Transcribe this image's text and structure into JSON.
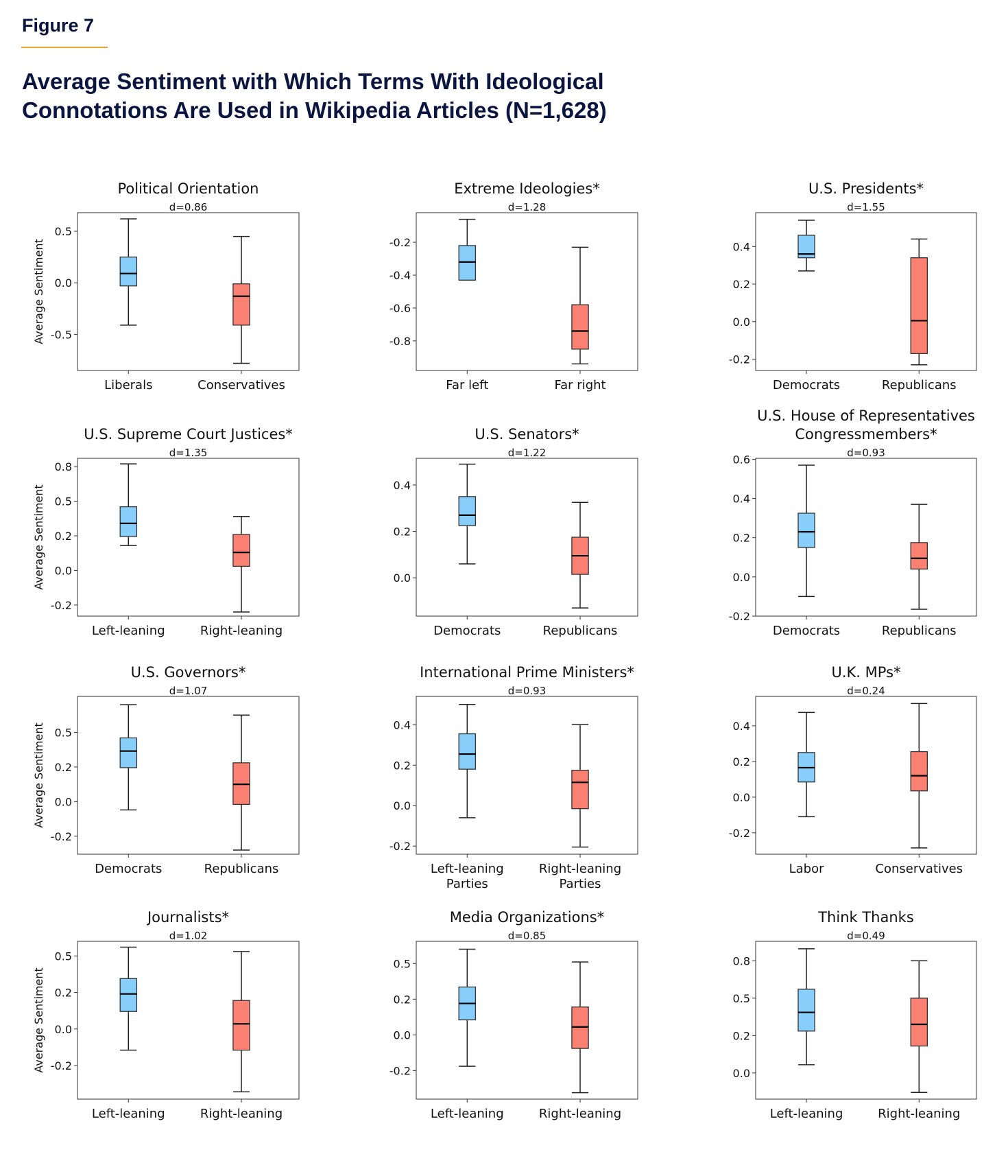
{
  "figure": {
    "label": "Figure 7",
    "title_lines": [
      "Average Sentiment with Which Terms With Ideological",
      "Connotations Are Used in Wikipedia Articles (N=1,628)"
    ]
  },
  "colors": {
    "left_group": "#87CEFA",
    "right_group": "#FA8072",
    "accent_rule": "#EFA33A",
    "title": "#0B1640"
  },
  "chart_data": [
    {
      "type": "box",
      "title": "Political Orientation",
      "subtitle": "d=0.86",
      "ylabel": "Average Sentiment",
      "ylim": [
        -0.85,
        0.68
      ],
      "yticks": [
        0.5,
        0.0,
        -0.5
      ],
      "ytick_labels": [
        "0.5",
        "0.0",
        "-0.5"
      ],
      "categories": [
        "Liberals",
        "Conservatives"
      ],
      "boxes": [
        {
          "name": "Liberals",
          "whisker_high": 0.62,
          "q3": 0.25,
          "median": 0.09,
          "q1": -0.03,
          "whisker_low": -0.41
        },
        {
          "name": "Conservatives",
          "whisker_high": 0.45,
          "q3": -0.01,
          "median": -0.13,
          "q1": -0.41,
          "whisker_low": -0.78
        }
      ]
    },
    {
      "type": "box",
      "title": "Extreme Ideologies*",
      "subtitle": "d=1.28",
      "ylabel": "",
      "ylim": [
        -0.98,
        -0.02
      ],
      "yticks": [
        -0.2,
        -0.4,
        -0.6,
        -0.8
      ],
      "ytick_labels": [
        "-0.2",
        "-0.4",
        "-0.6",
        "-0.8"
      ],
      "categories": [
        "Far left",
        "Far right"
      ],
      "boxes": [
        {
          "name": "Far left",
          "whisker_high": -0.06,
          "q3": -0.22,
          "median": -0.32,
          "q1": -0.43,
          "whisker_low": -0.43
        },
        {
          "name": "Far right",
          "whisker_high": -0.23,
          "q3": -0.58,
          "median": -0.74,
          "q1": -0.85,
          "whisker_low": -0.94
        }
      ]
    },
    {
      "type": "box",
      "title": "U.S. Presidents*",
      "subtitle": "d=1.55",
      "ylabel": "",
      "ylim": [
        -0.26,
        0.58
      ],
      "yticks": [
        0.4,
        0.2,
        0.0,
        -0.2
      ],
      "ytick_labels": [
        "0.4",
        "0.2",
        "0.0",
        "-0.2"
      ],
      "categories": [
        "Democrats",
        "Republicans"
      ],
      "boxes": [
        {
          "name": "Democrats",
          "whisker_high": 0.54,
          "q3": 0.46,
          "median": 0.36,
          "q1": 0.34,
          "whisker_low": 0.27
        },
        {
          "name": "Republicans",
          "whisker_high": 0.44,
          "q3": 0.34,
          "median": 0.005,
          "q1": -0.17,
          "whisker_low": -0.23
        }
      ]
    },
    {
      "type": "box",
      "title": "U.S. Supreme Court Justices*",
      "subtitle": "d=1.35",
      "ylabel": "Average Sentiment",
      "ylim": [
        -0.33,
        0.81
      ],
      "yticks": [
        0.75,
        0.5,
        0.25,
        0.0,
        -0.25
      ],
      "ytick_labels": [
        "0.8",
        "0.5",
        "0.2",
        "0.0",
        "-0.2"
      ],
      "categories": [
        "Left-leaning",
        "Right-leaning"
      ],
      "boxes": [
        {
          "name": "Left-leaning",
          "whisker_high": 0.77,
          "q3": 0.46,
          "median": 0.34,
          "q1": 0.245,
          "whisker_low": 0.18
        },
        {
          "name": "Right-leaning",
          "whisker_high": 0.39,
          "q3": 0.26,
          "median": 0.13,
          "q1": 0.03,
          "whisker_low": -0.3
        }
      ]
    },
    {
      "type": "box",
      "title": "U.S. Senators*",
      "subtitle": "d=1.22",
      "ylabel": "",
      "ylim": [
        -0.165,
        0.515
      ],
      "yticks": [
        0.4,
        0.2,
        0.0
      ],
      "ytick_labels": [
        "0.4",
        "0.2",
        "0.0"
      ],
      "categories": [
        "Democrats",
        "Republicans"
      ],
      "boxes": [
        {
          "name": "Democrats",
          "whisker_high": 0.49,
          "q3": 0.35,
          "median": 0.27,
          "q1": 0.225,
          "whisker_low": 0.06
        },
        {
          "name": "Republicans",
          "whisker_high": 0.325,
          "q3": 0.175,
          "median": 0.095,
          "q1": 0.015,
          "whisker_low": -0.13
        }
      ]
    },
    {
      "type": "box",
      "title": "U.S. House of Representatives Congressmembers*",
      "title_lines": [
        "U.S. House of Representatives",
        "Congressmembers*"
      ],
      "subtitle": "d=0.93",
      "ylabel": "",
      "ylim": [
        -0.2,
        0.605
      ],
      "yticks": [
        0.6,
        0.4,
        0.2,
        0.0,
        -0.2
      ],
      "ytick_labels": [
        "0.6",
        "0.4",
        "0.2",
        "0.0",
        "-0.2"
      ],
      "categories": [
        "Democrats",
        "Republicans"
      ],
      "boxes": [
        {
          "name": "Democrats",
          "whisker_high": 0.57,
          "q3": 0.325,
          "median": 0.23,
          "q1": 0.15,
          "whisker_low": -0.1
        },
        {
          "name": "Republicans",
          "whisker_high": 0.37,
          "q3": 0.175,
          "median": 0.095,
          "q1": 0.04,
          "whisker_low": -0.165
        }
      ]
    },
    {
      "type": "box",
      "title": "U.S. Governors*",
      "subtitle": "d=1.07",
      "ylabel": "Average Sentiment",
      "ylim": [
        -0.38,
        0.76
      ],
      "yticks": [
        0.5,
        0.25,
        0.0,
        -0.25
      ],
      "ytick_labels": [
        "0.5",
        "0.2",
        "0.0",
        "-0.2"
      ],
      "categories": [
        "Democrats",
        "Republicans"
      ],
      "boxes": [
        {
          "name": "Democrats",
          "whisker_high": 0.7,
          "q3": 0.46,
          "median": 0.365,
          "q1": 0.245,
          "whisker_low": -0.06
        },
        {
          "name": "Republicans",
          "whisker_high": 0.625,
          "q3": 0.28,
          "median": 0.125,
          "q1": -0.02,
          "whisker_low": -0.35
        }
      ]
    },
    {
      "type": "box",
      "title": "International Prime Ministers*",
      "subtitle": "d=0.93",
      "ylabel": "",
      "ylim": [
        -0.24,
        0.54
      ],
      "yticks": [
        0.4,
        0.2,
        0.0,
        -0.2
      ],
      "ytick_labels": [
        "0.4",
        "0.2",
        "0.0",
        "-0.2"
      ],
      "categories": [
        "Left-leaning Parties",
        "Right-leaning Parties"
      ],
      "category_lines": [
        [
          "Left-leaning",
          "Parties"
        ],
        [
          "Right-leaning",
          "Parties"
        ]
      ],
      "boxes": [
        {
          "name": "Left-leaning Parties",
          "whisker_high": 0.5,
          "q3": 0.355,
          "median": 0.255,
          "q1": 0.18,
          "whisker_low": -0.06
        },
        {
          "name": "Right-leaning Parties",
          "whisker_high": 0.4,
          "q3": 0.175,
          "median": 0.115,
          "q1": -0.015,
          "whisker_low": -0.205
        }
      ]
    },
    {
      "type": "box",
      "title": "U.K. MPs*",
      "subtitle": "d=0.24",
      "ylabel": "",
      "ylim": [
        -0.32,
        0.565
      ],
      "yticks": [
        0.4,
        0.2,
        0.0,
        -0.2
      ],
      "ytick_labels": [
        "0.4",
        "0.2",
        "0.0",
        "-0.2"
      ],
      "categories": [
        "Labor",
        "Conservatives"
      ],
      "boxes": [
        {
          "name": "Labor",
          "whisker_high": 0.475,
          "q3": 0.25,
          "median": 0.165,
          "q1": 0.085,
          "whisker_low": -0.11
        },
        {
          "name": "Conservatives",
          "whisker_high": 0.525,
          "q3": 0.255,
          "median": 0.12,
          "q1": 0.035,
          "whisker_low": -0.285
        }
      ]
    },
    {
      "type": "box",
      "title": "Journalists*",
      "subtitle": "d=1.02",
      "ylabel": "Average Sentiment",
      "ylim": [
        -0.48,
        0.6
      ],
      "yticks": [
        0.5,
        0.25,
        0.0,
        -0.25
      ],
      "ytick_labels": [
        "0.5",
        "0.2",
        "0.0",
        "-0.2"
      ],
      "categories": [
        "Left-leaning",
        "Right-leaning"
      ],
      "boxes": [
        {
          "name": "Left-leaning",
          "whisker_high": 0.56,
          "q3": 0.345,
          "median": 0.24,
          "q1": 0.12,
          "whisker_low": -0.145
        },
        {
          "name": "Right-leaning",
          "whisker_high": 0.53,
          "q3": 0.195,
          "median": 0.035,
          "q1": -0.145,
          "whisker_low": -0.43
        }
      ]
    },
    {
      "type": "box",
      "title": "Media Organizations*",
      "subtitle": "d=0.85",
      "ylabel": "",
      "ylim": [
        -0.45,
        0.655
      ],
      "yticks": [
        0.5,
        0.25,
        0.0,
        -0.25
      ],
      "ytick_labels": [
        "0.5",
        "0.2",
        "0.0",
        "-0.2"
      ],
      "categories": [
        "Left-leaning",
        "Right-leaning"
      ],
      "boxes": [
        {
          "name": "Left-leaning",
          "whisker_high": 0.6,
          "q3": 0.335,
          "median": 0.22,
          "q1": 0.105,
          "whisker_low": -0.22
        },
        {
          "name": "Right-leaning",
          "whisker_high": 0.51,
          "q3": 0.195,
          "median": 0.055,
          "q1": -0.095,
          "whisker_low": -0.405
        }
      ]
    },
    {
      "type": "box",
      "title": "Think Thanks",
      "subtitle": "d=0.49",
      "ylabel": "",
      "ylim": [
        -0.175,
        0.88
      ],
      "yticks": [
        0.75,
        0.5,
        0.25,
        0.0
      ],
      "ytick_labels": [
        "0.8",
        "0.5",
        "0.2",
        "0.0"
      ],
      "categories": [
        "Left-leaning",
        "Right-leaning"
      ],
      "boxes": [
        {
          "name": "Left-leaning",
          "whisker_high": 0.83,
          "q3": 0.56,
          "median": 0.405,
          "q1": 0.28,
          "whisker_low": 0.055
        },
        {
          "name": "Right-leaning",
          "whisker_high": 0.75,
          "q3": 0.5,
          "median": 0.325,
          "q1": 0.18,
          "whisker_low": -0.13
        }
      ]
    }
  ]
}
